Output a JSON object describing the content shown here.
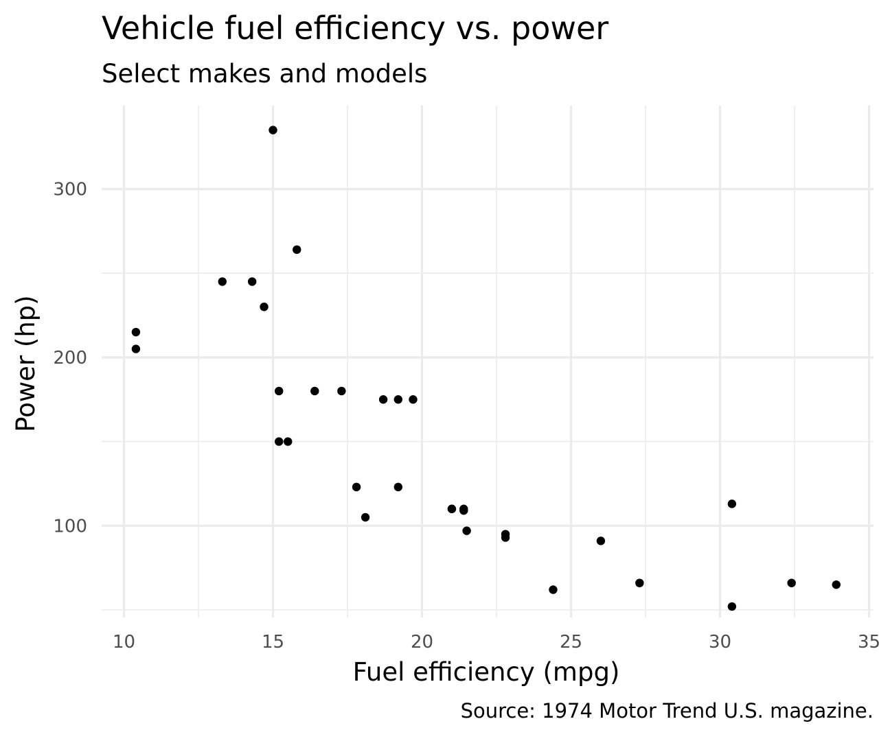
{
  "chart_data": {
    "type": "scatter",
    "title": "Vehicle fuel efficiency vs. power",
    "subtitle": "Select makes and models",
    "caption": "Source: 1974 Motor Trend U.S. magazine.",
    "xlabel": "Fuel efficiency (mpg)",
    "ylabel": "Power (hp)",
    "xlim": [
      9.25,
      35.15
    ],
    "ylim": [
      45.5,
      349.5
    ],
    "x_ticks": [
      10,
      15,
      20,
      25,
      30,
      35
    ],
    "x_tick_labels": [
      "10",
      "15",
      "20",
      "25",
      "30",
      "35"
    ],
    "x_minor_ticks": [
      12.5,
      17.5,
      22.5,
      27.5,
      32.5
    ],
    "y_ticks": [
      100,
      200,
      300
    ],
    "y_tick_labels": [
      "100",
      "200",
      "300"
    ],
    "y_minor_ticks": [
      50,
      150,
      250
    ],
    "grid": true,
    "point_color": "#000000",
    "grid_color": "#ebebeb",
    "series": [
      {
        "points": [
          [
            21.0,
            110
          ],
          [
            21.0,
            110
          ],
          [
            22.8,
            93
          ],
          [
            21.4,
            110
          ],
          [
            18.7,
            175
          ],
          [
            18.1,
            105
          ],
          [
            14.3,
            245
          ],
          [
            24.4,
            62
          ],
          [
            22.8,
            95
          ],
          [
            19.2,
            123
          ],
          [
            17.8,
            123
          ],
          [
            16.4,
            180
          ],
          [
            17.3,
            180
          ],
          [
            15.2,
            180
          ],
          [
            10.4,
            205
          ],
          [
            10.4,
            215
          ],
          [
            14.7,
            230
          ],
          [
            32.4,
            66
          ],
          [
            30.4,
            52
          ],
          [
            33.9,
            65
          ],
          [
            21.5,
            97
          ],
          [
            15.5,
            150
          ],
          [
            15.2,
            150
          ],
          [
            13.3,
            245
          ],
          [
            19.2,
            175
          ],
          [
            27.3,
            66
          ],
          [
            26.0,
            91
          ],
          [
            30.4,
            113
          ],
          [
            15.8,
            264
          ],
          [
            19.7,
            175
          ],
          [
            15.0,
            335
          ],
          [
            21.4,
            109
          ]
        ]
      }
    ]
  }
}
